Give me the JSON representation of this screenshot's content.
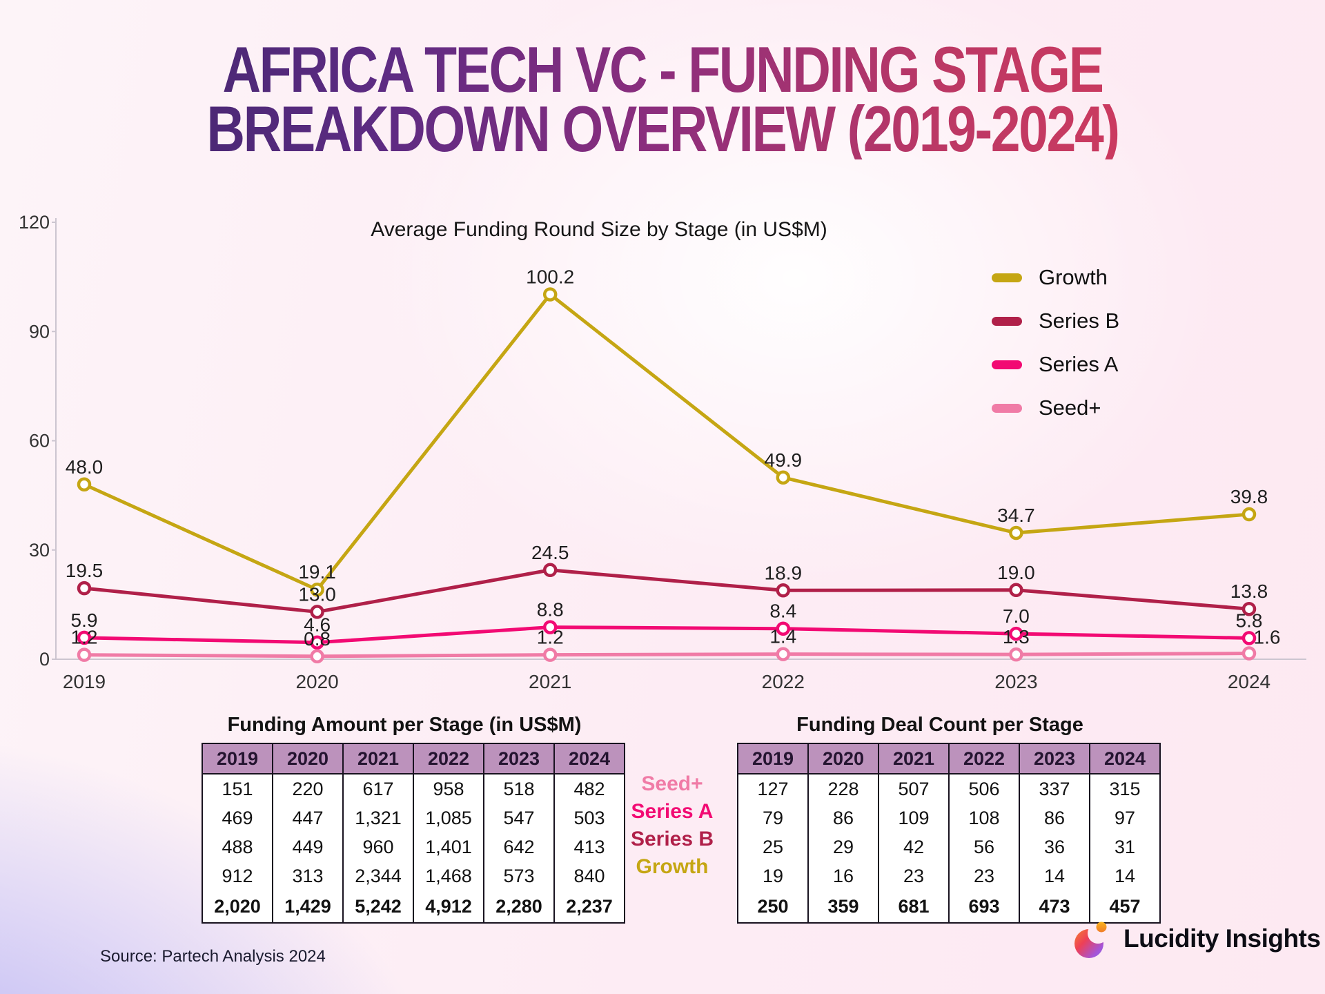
{
  "title": {
    "line1": "AFRICA TECH VC - FUNDING STAGE",
    "line2": "BREAKDOWN OVERVIEW (2019-2024)"
  },
  "chart_data": {
    "type": "line",
    "title": "Average Funding Round Size by Stage (in US$M)",
    "x": [
      "2019",
      "2020",
      "2021",
      "2022",
      "2023",
      "2024"
    ],
    "series": [
      {
        "name": "Growth",
        "color": "#c5a613",
        "values": [
          48.0,
          19.1,
          100.2,
          49.9,
          34.7,
          39.8
        ]
      },
      {
        "name": "Series B",
        "color": "#b02049",
        "values": [
          19.5,
          13.0,
          24.5,
          18.9,
          19.0,
          13.8
        ]
      },
      {
        "name": "Series A",
        "color": "#f20a73",
        "values": [
          5.9,
          4.6,
          8.8,
          8.4,
          7.0,
          5.8
        ]
      },
      {
        "name": "Seed+",
        "color": "#f07ba6",
        "values": [
          1.2,
          0.8,
          1.2,
          1.4,
          1.3,
          1.6
        ]
      }
    ],
    "ylim": [
      0,
      120
    ],
    "yticks": [
      0,
      30,
      60,
      90,
      120
    ],
    "legend_position": "right",
    "grid": false
  },
  "tables": {
    "funding_amount": {
      "title": "Funding Amount per Stage (in US$M)",
      "columns": [
        "2019",
        "2020",
        "2021",
        "2022",
        "2023",
        "2024"
      ],
      "rows": [
        [
          "151",
          "220",
          "617",
          "958",
          "518",
          "482"
        ],
        [
          "469",
          "447",
          "1,321",
          "1,085",
          "547",
          "503"
        ],
        [
          "488",
          "449",
          "960",
          "1,401",
          "642",
          "413"
        ],
        [
          "912",
          "313",
          "2,344",
          "1,468",
          "573",
          "840"
        ]
      ],
      "totals": [
        "2,020",
        "1,429",
        "5,242",
        "4,912",
        "2,280",
        "2,237"
      ]
    },
    "deal_count": {
      "title": "Funding Deal Count per Stage",
      "columns": [
        "2019",
        "2020",
        "2021",
        "2022",
        "2023",
        "2024"
      ],
      "rows": [
        [
          "127",
          "228",
          "507",
          "506",
          "337",
          "315"
        ],
        [
          "79",
          "86",
          "109",
          "108",
          "86",
          "97"
        ],
        [
          "25",
          "29",
          "42",
          "56",
          "36",
          "31"
        ],
        [
          "19",
          "16",
          "23",
          "23",
          "14",
          "14"
        ]
      ],
      "totals": [
        "250",
        "359",
        "681",
        "693",
        "473",
        "457"
      ]
    },
    "row_labels": [
      {
        "label": "Seed+",
        "color": "#f07ba6"
      },
      {
        "label": "Series A",
        "color": "#f20a73"
      },
      {
        "label": "Series B",
        "color": "#b02049"
      },
      {
        "label": "Growth",
        "color": "#c5a613"
      }
    ]
  },
  "footer": {
    "source": "Source: Partech Analysis 2024",
    "brand": "Lucidity Insights"
  },
  "theme": {
    "title_gradient": [
      "#43276f",
      "#5e2b83",
      "#8d2e7d",
      "#bb3865",
      "#d23b5d"
    ],
    "table_header_bg": "#bc92bc",
    "table_header_text": "#241430",
    "axis_color": "#ccc5d0",
    "label_text": "#1f1f1f",
    "background_lavender": "#a5a3f3",
    "background_pink": "#fde9f2"
  }
}
